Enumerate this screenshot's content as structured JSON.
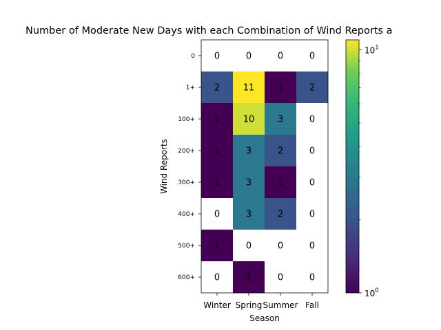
{
  "chart_data": {
    "type": "heatmap",
    "title": "Number of Moderate New Days with each Combination of Wind Reports a",
    "xlabel": "Season",
    "ylabel": "Wind Reports",
    "x_categories": [
      "Winter",
      "Spring",
      "Summer",
      "Fall"
    ],
    "y_categories": [
      "0",
      "1+",
      "100+",
      "200+",
      "300+",
      "400+",
      "500+",
      "600+"
    ],
    "values": [
      [
        0,
        0,
        0,
        0
      ],
      [
        2,
        11,
        1,
        2
      ],
      [
        1,
        10,
        3,
        0
      ],
      [
        1,
        3,
        2,
        0
      ],
      [
        1,
        3,
        1,
        0
      ],
      [
        0,
        3,
        2,
        0
      ],
      [
        1,
        0,
        0,
        0
      ],
      [
        0,
        1,
        0,
        0
      ]
    ],
    "color_scale": "log",
    "colormap": "viridis",
    "zero_color": "#ffffff",
    "colorbar": {
      "range": [
        1,
        11
      ],
      "ticks": [
        {
          "value": 10,
          "base": "10",
          "exp": "1"
        },
        {
          "value": 1,
          "base": "10",
          "exp": "0"
        }
      ]
    }
  }
}
